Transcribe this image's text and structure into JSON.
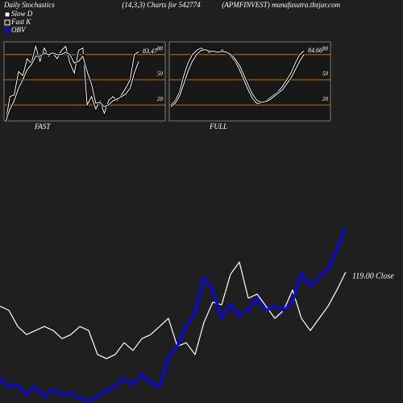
{
  "header": {
    "left": "Daily Stochastics",
    "center": "(14,3,3) Charts for 542774",
    "right": "(APMFINVEST) munafasutra.tbzjar.com"
  },
  "chart_data": [
    {
      "type": "line",
      "title": "FAST",
      "ylim": [
        0,
        100
      ],
      "yticks": [
        20,
        50,
        80
      ],
      "grid": true,
      "grid_color": "#c87000",
      "annotation": 83.47,
      "series": [
        {
          "name": "Fast K",
          "color": "#ffffff",
          "values": [
            0,
            30,
            32,
            60,
            55,
            75,
            70,
            90,
            72,
            88,
            78,
            82,
            75,
            85,
            90,
            70,
            58,
            85,
            88,
            20,
            30,
            15,
            25,
            10,
            25,
            30,
            25,
            32,
            40,
            50,
            80,
            83.47
          ]
        },
        {
          "name": "Slow D",
          "color": "#ffffff",
          "values": [
            0,
            15,
            25,
            40,
            50,
            62,
            68,
            78,
            78,
            82,
            80,
            82,
            80,
            80,
            83,
            80,
            70,
            72,
            78,
            60,
            45,
            22,
            23,
            18,
            20,
            25,
            27,
            30,
            33,
            40,
            58,
            72
          ]
        }
      ]
    },
    {
      "type": "line",
      "title": "FULL",
      "ylim": [
        0,
        100
      ],
      "yticks": [
        20,
        50,
        80
      ],
      "grid": true,
      "grid_color": "#c87000",
      "annotation": 84.66,
      "series": [
        {
          "color": "#ffffff",
          "values": [
            20,
            25,
            35,
            55,
            70,
            80,
            85,
            88,
            86,
            82,
            85,
            83,
            86,
            82,
            78,
            72,
            62,
            50,
            38,
            28,
            22,
            22,
            25,
            28,
            32,
            36,
            42,
            50,
            58,
            70,
            80,
            84.66
          ]
        },
        {
          "color": "#ffffff",
          "values": [
            18,
            22,
            30,
            45,
            60,
            72,
            80,
            85,
            86,
            84,
            84,
            83,
            84,
            83,
            80,
            75,
            67,
            56,
            44,
            33,
            26,
            23,
            24,
            26,
            30,
            34,
            38,
            45,
            52,
            62,
            72,
            80
          ]
        }
      ]
    },
    {
      "type": "line",
      "ylim": [
        90,
        125
      ],
      "y2lim": [
        0,
        250000
      ],
      "annotation": {
        "value": 119.0,
        "label": "119.00"
      },
      "annotation_caption": "Close",
      "series": [
        {
          "color": "#ffffff",
          "values": [
            109.7,
            108.6,
            104.2,
            102.0,
            103.1,
            104.2,
            103.1,
            100.9,
            102.0,
            104.2,
            103.1,
            96.6,
            95.5,
            96.6,
            99.8,
            97.7,
            100.9,
            102.0,
            104.2,
            106.4,
            98.8,
            99.8,
            96.6,
            105.3,
            110.8,
            110.1,
            118.4,
            121.7,
            111.9,
            113.0,
            109.7,
            106.4,
            108.6,
            114.1,
            106.4,
            103.1,
            106.4,
            109.7,
            114.1,
            119.0
          ]
        },
        {
          "name": "OBV",
          "color": "#0a0ad2",
          "axis": "y2",
          "values": [
            30000,
            20000,
            22000,
            10000,
            20000,
            8000,
            16000,
            10000,
            12000,
            5000,
            3000,
            7000,
            15000,
            20000,
            30000,
            22000,
            35000,
            25000,
            20000,
            55000,
            70000,
            95000,
            110000,
            155000,
            140000,
            105000,
            122000,
            108000,
            115000,
            130000,
            115000,
            120000,
            115000,
            125000,
            160000,
            145000,
            155000,
            165000,
            190000,
            217000
          ]
        }
      ]
    }
  ]
}
